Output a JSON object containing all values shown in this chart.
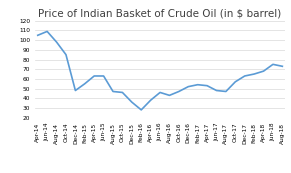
{
  "title": "Price of Indian Basket of Crude Oil (in $ barrel)",
  "x_labels": [
    "Apr-14",
    "Jun-14",
    "Aug-14",
    "Oct-14",
    "Dec-14",
    "Feb-15",
    "Apr-15",
    "Jun-15",
    "Aug-15",
    "Oct-15",
    "Dec-15",
    "Feb-16",
    "Apr-16",
    "Jun-16",
    "Aug-16",
    "Oct-16",
    "Dec-16",
    "Feb-17",
    "Apr-17",
    "Jun-17",
    "Aug-17",
    "Oct-17",
    "Dec-17",
    "Feb-18",
    "Apr-18",
    "Jun-18",
    "Aug-18"
  ],
  "y_values": [
    105,
    109,
    98,
    85,
    48,
    55,
    63,
    63,
    47,
    46,
    36,
    28,
    38,
    46,
    43,
    47,
    52,
    54,
    53,
    48,
    47,
    57,
    63,
    65,
    68,
    75,
    73
  ],
  "line_color": "#5B9BD5",
  "line_width": 1.2,
  "ylim": [
    20,
    120
  ],
  "yticks": [
    20,
    30,
    40,
    50,
    60,
    70,
    80,
    90,
    100,
    110,
    120
  ],
  "background_color": "#ffffff",
  "grid_color": "#d9d9d9",
  "title_fontsize": 7.5,
  "tick_fontsize": 4.2,
  "label_rotation": 90
}
